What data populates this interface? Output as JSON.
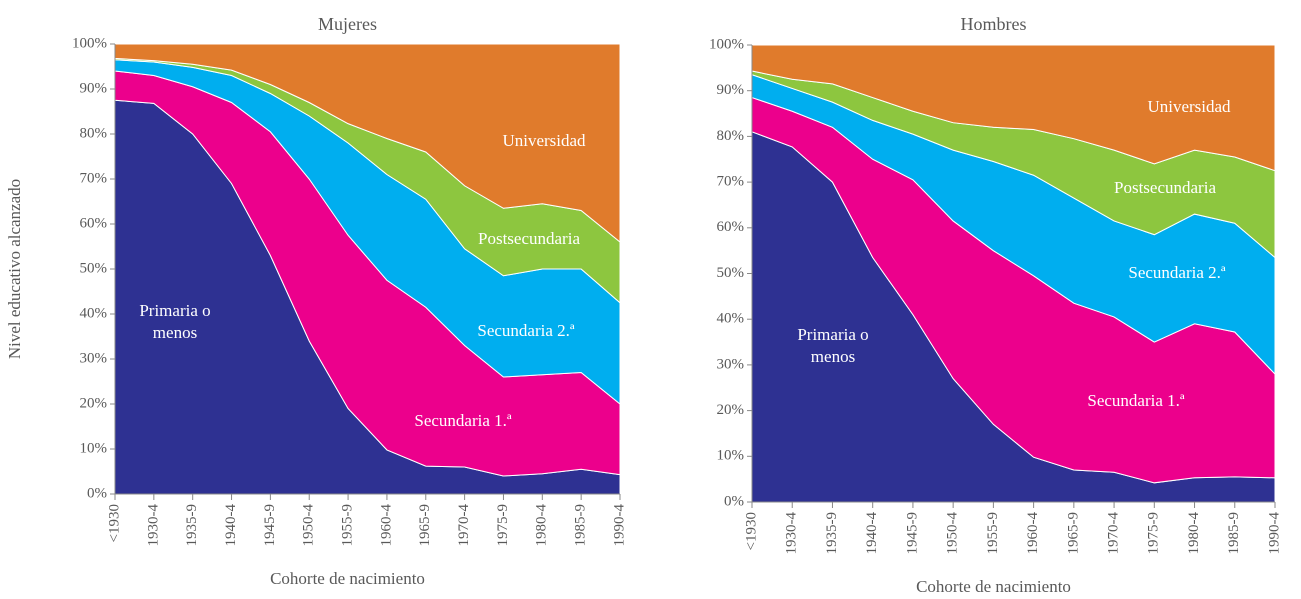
{
  "chart_data": [
    {
      "type": "stacked_area",
      "title": "Mujeres",
      "y_label": "Nivel educativo alcanzado",
      "x_label": "Cohorte de nacimiento",
      "categories": [
        "<1930",
        "1930-4",
        "1935-9",
        "1940-4",
        "1945-9",
        "1950-4",
        "1955-9",
        "1960-4",
        "1965-9",
        "1970-4",
        "1975-9",
        "1980-4",
        "1985-9",
        "1990-4"
      ],
      "ylim": [
        0,
        100
      ],
      "yticks": [
        {
          "value": 0,
          "label": "0%"
        },
        {
          "value": 10,
          "label": "10%"
        },
        {
          "value": 20,
          "label": "20%"
        },
        {
          "value": 30,
          "label": "30%"
        },
        {
          "value": 40,
          "label": "40%"
        },
        {
          "value": 50,
          "label": "50%"
        },
        {
          "value": 60,
          "label": "60%"
        },
        {
          "value": 70,
          "label": "70%"
        },
        {
          "value": 80,
          "label": "80%"
        },
        {
          "value": 90,
          "label": "90%"
        },
        {
          "value": 100,
          "label": "100%"
        }
      ],
      "series": [
        {
          "name": "Primaria o menos",
          "color": "#2e3192",
          "values": [
            87.5,
            86.8,
            80,
            69,
            53,
            34,
            19,
            9.8,
            6.2,
            6,
            4,
            4.5,
            5.5,
            4.3
          ]
        },
        {
          "name": "Secundaria 1.ª",
          "color": "#ec008c",
          "values": [
            6.5,
            6.2,
            10.5,
            18,
            27.5,
            36,
            38.5,
            37.7,
            35.3,
            27,
            22,
            22,
            21.5,
            15.7
          ]
        },
        {
          "name": "Secundaria 2.ª",
          "color": "#00aeef",
          "values": [
            2.5,
            3,
            4.3,
            6,
            8.5,
            14,
            20.5,
            23.5,
            24,
            21.5,
            22.5,
            23.5,
            23,
            22.5
          ]
        },
        {
          "name": "Postsecundaria",
          "color": "#8dc63f",
          "values": [
            0.3,
            0.3,
            0.7,
            1.2,
            2,
            3,
            4.3,
            8,
            10.5,
            14,
            15,
            14.5,
            13,
            13.5
          ]
        },
        {
          "name": "Universidad",
          "color": "#e07b2c",
          "values": [
            3.2,
            3.7,
            4.5,
            5.8,
            9,
            13,
            17.7,
            21,
            24,
            31.5,
            36.5,
            35.5,
            37,
            44
          ]
        }
      ]
    },
    {
      "type": "stacked_area",
      "title": "Hombres",
      "x_label": "Cohorte de nacimiento",
      "categories": [
        "<1930",
        "1930-4",
        "1935-9",
        "1940-4",
        "1945-9",
        "1950-4",
        "1955-9",
        "1960-4",
        "1965-9",
        "1970-4",
        "1975-9",
        "1980-4",
        "1985-9",
        "1990-4"
      ],
      "ylim": [
        0,
        100
      ],
      "yticks": [
        {
          "value": 0,
          "label": "0%"
        },
        {
          "value": 10,
          "label": "10%"
        },
        {
          "value": 20,
          "label": "20%"
        },
        {
          "value": 30,
          "label": "30%"
        },
        {
          "value": 40,
          "label": "40%"
        },
        {
          "value": 50,
          "label": "50%"
        },
        {
          "value": 60,
          "label": "60%"
        },
        {
          "value": 70,
          "label": "70%"
        },
        {
          "value": 80,
          "label": "80%"
        },
        {
          "value": 90,
          "label": "90%"
        },
        {
          "value": 100,
          "label": "100%"
        }
      ],
      "series": [
        {
          "name": "Primaria o menos",
          "color": "#2e3192",
          "values": [
            81,
            77.7,
            70,
            53.5,
            41,
            27,
            17,
            9.8,
            7,
            6.5,
            4.2,
            5.3,
            5.5,
            5.3
          ]
        },
        {
          "name": "Secundaria 1.ª",
          "color": "#ec008c",
          "values": [
            7.5,
            7.8,
            12,
            21.5,
            29.5,
            34.5,
            38,
            39.7,
            36.5,
            34,
            30.8,
            33.7,
            31.7,
            22.7
          ]
        },
        {
          "name": "Secundaria 2.ª",
          "color": "#00aeef",
          "values": [
            5,
            5,
            5.5,
            8.5,
            10,
            15.5,
            19.5,
            22,
            23,
            21,
            23.5,
            24,
            23.8,
            25.5
          ]
        },
        {
          "name": "Postsecundaria",
          "color": "#8dc63f",
          "values": [
            0.8,
            2,
            4,
            5,
            5,
            6,
            7.5,
            10,
            13,
            15.5,
            15.5,
            14,
            14.5,
            19
          ]
        },
        {
          "name": "Universidad",
          "color": "#e07b2c",
          "values": [
            5.7,
            7.5,
            8.5,
            11.5,
            14.5,
            17,
            18,
            18.5,
            20.5,
            23,
            26,
            23,
            24.5,
            27.5
          ]
        }
      ]
    }
  ]
}
